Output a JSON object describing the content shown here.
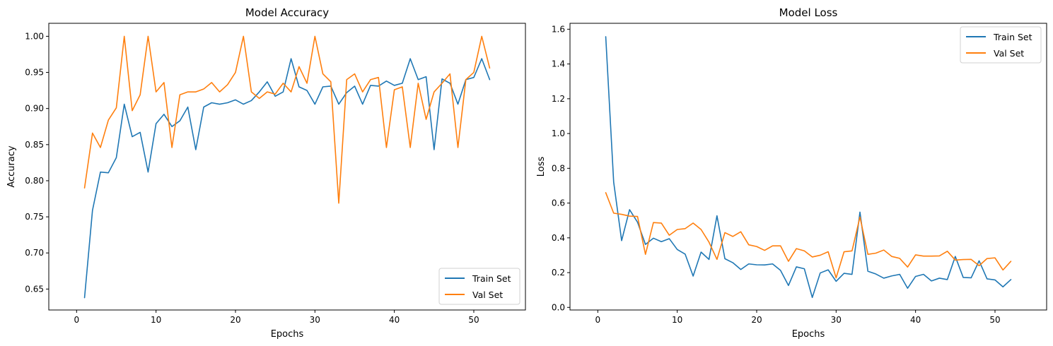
{
  "chart_data": [
    {
      "type": "line",
      "title": "Model Accuracy",
      "xlabel": "Epochs",
      "ylabel": "Accuracy",
      "xlim": [
        -3.5,
        56.5
      ],
      "ylim": [
        0.621,
        1.018
      ],
      "xticks": [
        0,
        10,
        20,
        30,
        40,
        50
      ],
      "yticks": [
        0.65,
        0.7,
        0.75,
        0.8,
        0.85,
        0.9,
        0.95,
        1.0
      ],
      "ytick_labels": [
        "0.65",
        "0.70",
        "0.75",
        "0.80",
        "0.85",
        "0.90",
        "0.95",
        "1.00"
      ],
      "legend_position": "lower-right",
      "x": [
        1,
        2,
        3,
        4,
        5,
        6,
        7,
        8,
        9,
        10,
        11,
        12,
        13,
        14,
        15,
        16,
        17,
        18,
        19,
        20,
        21,
        22,
        23,
        24,
        25,
        26,
        27,
        28,
        29,
        30,
        31,
        32,
        33,
        34,
        35,
        36,
        37,
        38,
        39,
        40,
        41,
        42,
        43,
        44,
        45,
        46,
        47,
        48,
        49,
        50,
        51,
        52
      ],
      "series": [
        {
          "name": "Train Set",
          "color": "#1f77b4",
          "values": [
            0.638,
            0.759,
            0.812,
            0.811,
            0.832,
            0.906,
            0.861,
            0.867,
            0.812,
            0.879,
            0.892,
            0.875,
            0.883,
            0.902,
            0.843,
            0.902,
            0.908,
            0.906,
            0.908,
            0.912,
            0.906,
            0.911,
            0.923,
            0.937,
            0.917,
            0.923,
            0.969,
            0.93,
            0.925,
            0.906,
            0.93,
            0.931,
            0.906,
            0.922,
            0.931,
            0.906,
            0.932,
            0.931,
            0.938,
            0.932,
            0.935,
            0.969,
            0.94,
            0.944,
            0.843,
            0.941,
            0.935,
            0.906,
            0.94,
            0.943,
            0.969,
            0.94
          ]
        },
        {
          "name": "Val Set",
          "color": "#ff7f0e",
          "values": [
            0.79,
            0.866,
            0.846,
            0.884,
            0.901,
            1.0,
            0.897,
            0.919,
            1.0,
            0.923,
            0.936,
            0.846,
            0.919,
            0.923,
            0.923,
            0.927,
            0.936,
            0.923,
            0.933,
            0.95,
            1.0,
            0.923,
            0.914,
            0.923,
            0.92,
            0.935,
            0.923,
            0.958,
            0.935,
            1.0,
            0.948,
            0.937,
            0.769,
            0.94,
            0.948,
            0.923,
            0.94,
            0.943,
            0.846,
            0.926,
            0.93,
            0.846,
            0.935,
            0.885,
            0.923,
            0.935,
            0.948,
            0.846,
            0.94,
            0.95,
            1.0,
            0.956
          ]
        }
      ]
    },
    {
      "type": "line",
      "title": "Model Loss",
      "xlabel": "Epochs",
      "ylabel": "Loss",
      "xlim": [
        -3.5,
        56.5
      ],
      "ylim": [
        -0.015,
        1.634
      ],
      "xticks": [
        0,
        10,
        20,
        30,
        40,
        50
      ],
      "yticks": [
        0.0,
        0.2,
        0.4,
        0.6,
        0.8,
        1.0,
        1.2,
        1.4,
        1.6
      ],
      "ytick_labels": [
        "0.0",
        "0.2",
        "0.4",
        "0.6",
        "0.8",
        "1.0",
        "1.2",
        "1.4",
        "1.6"
      ],
      "legend_position": "upper-right",
      "x": [
        1,
        2,
        3,
        4,
        5,
        6,
        7,
        8,
        9,
        10,
        11,
        12,
        13,
        14,
        15,
        16,
        17,
        18,
        19,
        20,
        21,
        22,
        23,
        24,
        25,
        26,
        27,
        28,
        29,
        30,
        31,
        32,
        33,
        34,
        35,
        36,
        37,
        38,
        39,
        40,
        41,
        42,
        43,
        44,
        45,
        46,
        47,
        48,
        49,
        50,
        51,
        52
      ],
      "series": [
        {
          "name": "Train Set",
          "color": "#1f77b4",
          "values": [
            1.557,
            0.72,
            0.384,
            0.562,
            0.49,
            0.362,
            0.398,
            0.378,
            0.395,
            0.333,
            0.306,
            0.18,
            0.318,
            0.276,
            0.527,
            0.28,
            0.257,
            0.218,
            0.25,
            0.245,
            0.244,
            0.25,
            0.213,
            0.126,
            0.233,
            0.222,
            0.057,
            0.198,
            0.216,
            0.15,
            0.196,
            0.19,
            0.548,
            0.208,
            0.192,
            0.168,
            0.181,
            0.19,
            0.11,
            0.178,
            0.19,
            0.152,
            0.168,
            0.16,
            0.293,
            0.172,
            0.17,
            0.268,
            0.164,
            0.158,
            0.118,
            0.16
          ]
        },
        {
          "name": "Val Set",
          "color": "#ff7f0e",
          "values": [
            0.66,
            0.542,
            0.535,
            0.525,
            0.523,
            0.305,
            0.488,
            0.485,
            0.415,
            0.448,
            0.453,
            0.485,
            0.448,
            0.375,
            0.276,
            0.43,
            0.408,
            0.435,
            0.36,
            0.35,
            0.328,
            0.354,
            0.354,
            0.265,
            0.338,
            0.325,
            0.29,
            0.3,
            0.32,
            0.17,
            0.32,
            0.325,
            0.52,
            0.305,
            0.312,
            0.33,
            0.293,
            0.282,
            0.232,
            0.302,
            0.295,
            0.295,
            0.296,
            0.323,
            0.272,
            0.275,
            0.276,
            0.24,
            0.281,
            0.285,
            0.215,
            0.265
          ]
        }
      ]
    }
  ]
}
